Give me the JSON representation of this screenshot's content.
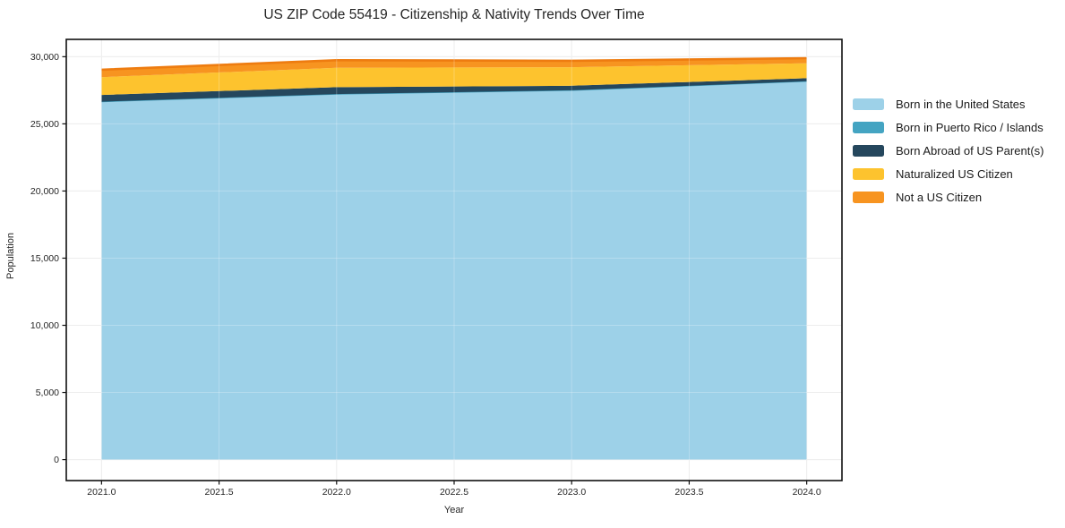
{
  "chart_data": {
    "type": "area",
    "stacked": true,
    "title": "US ZIP Code 55419 - Citizenship & Nativity Trends Over Time",
    "xlabel": "Year",
    "ylabel": "Population",
    "x": [
      2021,
      2022,
      2023,
      2024
    ],
    "series": [
      {
        "name": "Born in the United States",
        "color": "#9dd1e8",
        "values": [
          26650,
          27220,
          27500,
          28170
        ]
      },
      {
        "name": "Born in Puerto Rico / Islands",
        "color": "#44a4c2",
        "edge": "#3d9ab8",
        "values": [
          0,
          0,
          0,
          0
        ]
      },
      {
        "name": "Born Abroad of US Parent(s)",
        "color": "#25475d",
        "values": [
          500,
          515,
          340,
          230
        ]
      },
      {
        "name": "Naturalized US Citizen",
        "color": "#fdc32e",
        "values": [
          1330,
          1440,
          1380,
          1110
        ]
      },
      {
        "name": "Not a US Citizen",
        "color": "#f79420",
        "edge": "#ee7c10",
        "values": [
          550,
          560,
          480,
          380
        ]
      }
    ],
    "totals": [
      29030,
      29735,
      29700,
      29890
    ],
    "xlim": [
      2020.85,
      2024.15
    ],
    "ylim": [
      -1560,
      31290
    ],
    "xticks": {
      "values": [
        2021,
        2021.5,
        2022,
        2022.5,
        2023,
        2023.5,
        2024
      ],
      "labels": [
        "2021.0",
        "2021.5",
        "2022.0",
        "2022.5",
        "2023.0",
        "2023.5",
        "2024.0"
      ]
    },
    "yticks": {
      "values": [
        0,
        5000,
        10000,
        15000,
        20000,
        25000,
        30000
      ],
      "labels": [
        "0",
        "5,000",
        "10,000",
        "15,000",
        "20,000",
        "25,000",
        "30,000"
      ]
    },
    "grid": true,
    "legend_position": "right",
    "colors": {
      "background": "#ffffff",
      "axis": "#111111",
      "grid": "#e7e7e7",
      "text": "#262626"
    }
  }
}
